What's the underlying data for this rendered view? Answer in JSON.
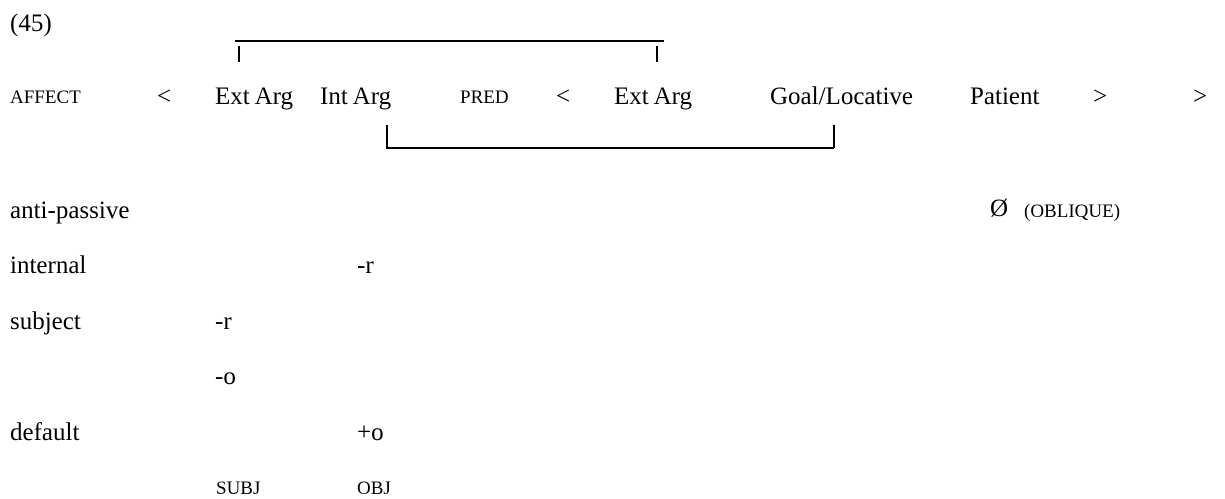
{
  "example_number": "(45)",
  "structure": {
    "affect": "AFFECT",
    "open_angle_1": "<",
    "ext_arg_1": "Ext Arg",
    "int_arg": "Int Arg",
    "pred": "PRED",
    "open_angle_2": "<",
    "ext_arg_2": "Ext Arg",
    "goal_locative": "Goal/Locative",
    "patient": "Patient",
    "close_angle_1": ">",
    "close_angle_2": ">"
  },
  "rows": {
    "anti_passive": "anti-passive",
    "anti_passive_symbol": "Ø",
    "anti_passive_oblique": "(OBLIQUE)",
    "internal": "internal",
    "internal_value": "-r",
    "subject": "subject",
    "subject_value_1": "-r",
    "subject_value_2": "-o",
    "default": "default",
    "default_value": "+o",
    "subj": "SUBJ",
    "obj": "OBJ"
  }
}
